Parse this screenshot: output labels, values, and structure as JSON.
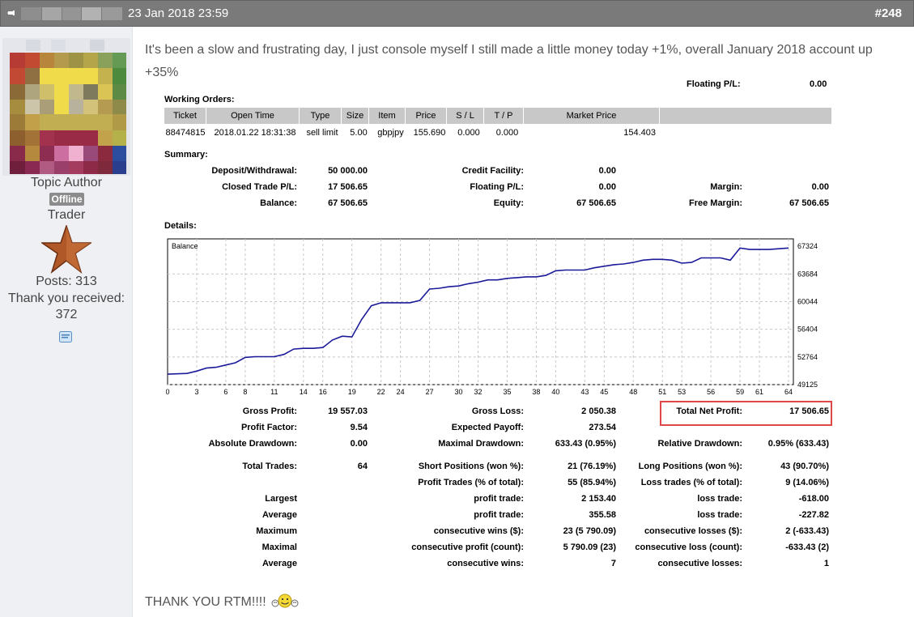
{
  "header": {
    "date": "23 Jan 2018 23:59",
    "post_number": "#248"
  },
  "sidebar": {
    "role": "Topic Author",
    "status": "Offline",
    "rank": "Trader",
    "posts": "Posts: 313",
    "thanks_label": "Thank you received:",
    "thanks_count": "372"
  },
  "post": {
    "text": "It's been a slow and frustrating day, I just console myself I still made a little money today +1%, overall January 2018 account up +35%",
    "thanks": "THANK YOU RTM!!!!"
  },
  "report": {
    "cut_label": "Floating P/L:",
    "cut_value": "0.00",
    "working_orders_title": "Working Orders:",
    "orders_columns": [
      "Ticket",
      "Open Time",
      "Type",
      "Size",
      "Item",
      "Price",
      "S / L",
      "T / P",
      "Market Price",
      ""
    ],
    "orders_rows": [
      [
        "88474815",
        "2018.01.22 18:31:38",
        "sell limit",
        "5.00",
        "gbpjpy",
        "155.690",
        "0.000",
        "0.000",
        "",
        "154.403"
      ]
    ],
    "summary_title": "Summary:",
    "summary": {
      "deposit_label": "Deposit/Withdrawal:",
      "deposit_value": "50 000.00",
      "credit_label": "Credit Facility:",
      "credit_value": "0.00",
      "closed_label": "Closed Trade P/L:",
      "closed_value": "17 506.65",
      "floating_label": "Floating P/L:",
      "floating_value": "0.00",
      "margin_label": "Margin:",
      "margin_value": "0.00",
      "balance_label": "Balance:",
      "balance_value": "67 506.65",
      "equity_label": "Equity:",
      "equity_value": "67 506.65",
      "free_margin_label": "Free Margin:",
      "free_margin_value": "67 506.65"
    },
    "details_title": "Details:",
    "stats": {
      "gross_profit_label": "Gross Profit:",
      "gross_profit_value": "19 557.03",
      "gross_loss_label": "Gross Loss:",
      "gross_loss_value": "2 050.38",
      "total_net_label": "Total Net Profit:",
      "total_net_value": "17 506.65",
      "profit_factor_label": "Profit Factor:",
      "profit_factor_value": "9.54",
      "expected_payoff_label": "Expected Payoff:",
      "expected_payoff_value": "273.54",
      "abs_dd_label": "Absolute Drawdown:",
      "abs_dd_value": "0.00",
      "max_dd_label": "Maximal Drawdown:",
      "max_dd_value": "633.43 (0.95%)",
      "rel_dd_label": "Relative Drawdown:",
      "rel_dd_value": "0.95% (633.43)",
      "total_trades_label": "Total Trades:",
      "total_trades_value": "64",
      "short_label": "Short Positions (won %):",
      "short_value": "21 (76.19%)",
      "long_label": "Long Positions (won %):",
      "long_value": "43 (90.70%)",
      "profit_trades_label": "Profit Trades (% of total):",
      "profit_trades_value": "55 (85.94%)",
      "loss_trades_label": "Loss trades (% of total):",
      "loss_trades_value": "9 (14.06%)",
      "largest_label": "Largest",
      "largest_pt_label": "profit trade:",
      "largest_pt_value": "2 153.40",
      "largest_lt_label": "loss trade:",
      "largest_lt_value": "-618.00",
      "average_label": "Average",
      "average_pt_label": "profit trade:",
      "average_pt_value": "355.58",
      "average_lt_label": "loss trade:",
      "average_lt_value": "-227.82",
      "maximum_label": "Maximum",
      "maximum_cw_label": "consecutive wins ($):",
      "maximum_cw_value": "23 (5 790.09)",
      "maximum_cl_label": "consecutive losses ($):",
      "maximum_cl_value": "2 (-633.43)",
      "maximal_label": "Maximal",
      "maximal_cp_label": "consecutive profit (count):",
      "maximal_cp_value": "5 790.09 (23)",
      "maximal_cl_label": "consecutive loss (count):",
      "maximal_cl_value": "-633.43 (2)",
      "average2_label": "Average",
      "average2_cw_label": "consecutive wins:",
      "average2_cw_value": "7",
      "average2_cl_label": "consecutive losses:",
      "average2_cl_value": "1"
    }
  },
  "chart_data": {
    "type": "line",
    "title": "Balance",
    "series": [
      {
        "values": [
          [
            0,
            50500
          ],
          [
            2,
            50600
          ],
          [
            3,
            50900
          ],
          [
            4,
            51300
          ],
          [
            5,
            51400
          ],
          [
            6,
            51700
          ],
          [
            7,
            52000
          ],
          [
            8,
            52700
          ],
          [
            9,
            52800
          ],
          [
            10,
            52800
          ],
          [
            11,
            52800
          ],
          [
            12,
            53100
          ],
          [
            13,
            53800
          ],
          [
            14,
            53900
          ],
          [
            15,
            53900
          ],
          [
            16,
            54000
          ],
          [
            17,
            55000
          ],
          [
            18,
            55500
          ],
          [
            19,
            55400
          ],
          [
            20,
            57700
          ],
          [
            21,
            59500
          ],
          [
            22,
            59900
          ],
          [
            23,
            59900
          ],
          [
            24,
            59900
          ],
          [
            25,
            59900
          ],
          [
            26,
            60200
          ],
          [
            27,
            61700
          ],
          [
            28,
            61800
          ],
          [
            29,
            62000
          ],
          [
            30,
            62100
          ],
          [
            31,
            62400
          ],
          [
            32,
            62600
          ],
          [
            33,
            62900
          ],
          [
            34,
            62900
          ],
          [
            35,
            63100
          ],
          [
            36,
            63200
          ],
          [
            37,
            63300
          ],
          [
            38,
            63300
          ],
          [
            39,
            63500
          ],
          [
            40,
            64100
          ],
          [
            41,
            64200
          ],
          [
            42,
            64200
          ],
          [
            43,
            64200
          ],
          [
            44,
            64500
          ],
          [
            45,
            64700
          ],
          [
            46,
            64900
          ],
          [
            47,
            65000
          ],
          [
            48,
            65200
          ],
          [
            49,
            65500
          ],
          [
            50,
            65600
          ],
          [
            51,
            65600
          ],
          [
            52,
            65500
          ],
          [
            53,
            65100
          ],
          [
            54,
            65200
          ],
          [
            55,
            65800
          ],
          [
            56,
            65800
          ],
          [
            57,
            65800
          ],
          [
            58,
            65500
          ],
          [
            59,
            67100
          ],
          [
            60,
            66900
          ],
          [
            61,
            66900
          ],
          [
            62,
            66900
          ],
          [
            63,
            67000
          ],
          [
            64,
            67100
          ]
        ]
      }
    ],
    "y_ticks": [
      "67324",
      "63684",
      "60044",
      "56404",
      "52764",
      "49125"
    ],
    "y_tick_values": [
      67324,
      63684,
      60044,
      56404,
      52764,
      49125
    ],
    "x_ticks": [
      "0",
      "3",
      "6",
      "8",
      "11",
      "14",
      "16",
      "19",
      "22",
      "24",
      "27",
      "30",
      "32",
      "35",
      "38",
      "40",
      "43",
      "45",
      "48",
      "51",
      "53",
      "56",
      "59",
      "61",
      "64"
    ],
    "x_range": [
      0,
      64.5
    ],
    "y_range": [
      49125,
      68300
    ],
    "grid": true,
    "line_color": "#1a1a9a"
  }
}
